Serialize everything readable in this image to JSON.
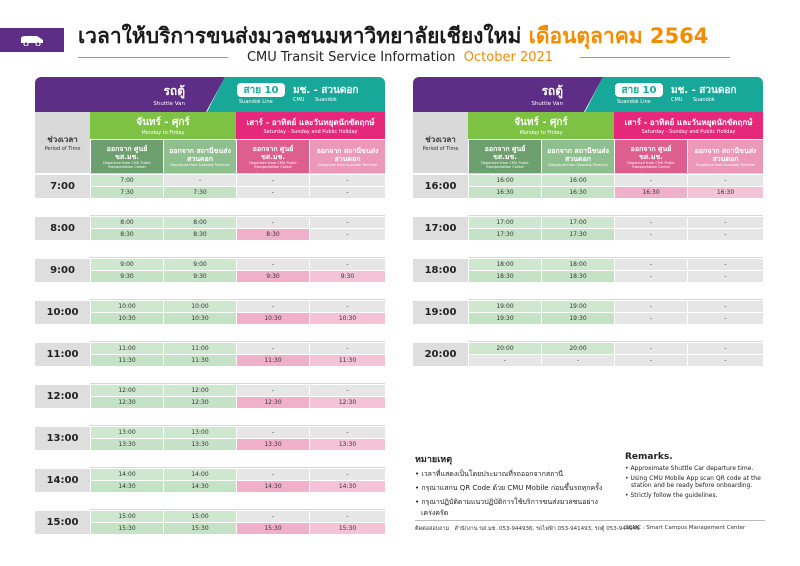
{
  "header": {
    "title": "เวลาให้บริการขนส่งมวลชนมหาวิทยาลัยเชียงใหม่",
    "title_month": "เดือนตุลาคม 2564",
    "subtitle": "CMU Transit Service Information",
    "subtitle_month": "October 2021"
  },
  "table_header": {
    "vehicle": "รถตู้",
    "vehicle_en": "Shuttle Van",
    "line": "สาย 10",
    "line_en": "Suandok Line",
    "route": "มช. - สวนดอก",
    "route_from": "CMU",
    "route_to": "Suandok",
    "period": "ช่วงเวลา",
    "period_en": "Period of Time",
    "weekday": "จันทร์ - ศุกร์",
    "weekday_en": "Monday to Friday",
    "weekend": "เสาร์ - อาทิตย์ และวันหยุดนักขัตฤกษ์",
    "weekend_en": "Saturday - Sunday and Public Holiday",
    "from_center": "ออกจาก ศูนย์ ขส.มช.",
    "from_center_en": "Departure from CMU Public Transportation Center",
    "from_terminal": "ออกจาก สถานีขนส่ง สวนดอก",
    "from_terminal_en": "Departure from Suandok Terminal"
  },
  "tables": [
    {
      "hours": [
        {
          "label": "7:00",
          "rows": [
            [
              "7:00",
              "-",
              "-",
              "-"
            ],
            [
              "7:30",
              "7:30",
              "-",
              "-"
            ]
          ]
        },
        {
          "label": "8:00",
          "rows": [
            [
              "8:00",
              "8:00",
              "-",
              "-"
            ],
            [
              "8:30",
              "8:30",
              "8:30",
              "-"
            ]
          ]
        },
        {
          "label": "9:00",
          "rows": [
            [
              "9:00",
              "9:00",
              "-",
              "-"
            ],
            [
              "9:30",
              "9:30",
              "9:30",
              "9:30"
            ]
          ]
        },
        {
          "label": "10:00",
          "rows": [
            [
              "10:00",
              "10:00",
              "-",
              "-"
            ],
            [
              "10:30",
              "10:30",
              "10:30",
              "10:30"
            ]
          ]
        },
        {
          "label": "11:00",
          "rows": [
            [
              "11:00",
              "11:00",
              "-",
              "-"
            ],
            [
              "11:30",
              "11:30",
              "11:30",
              "11:30"
            ]
          ]
        },
        {
          "label": "12:00",
          "rows": [
            [
              "12:00",
              "12:00",
              "-",
              "-"
            ],
            [
              "12:30",
              "12:30",
              "12:30",
              "12:30"
            ]
          ]
        },
        {
          "label": "13:00",
          "rows": [
            [
              "13:00",
              "13:00",
              "-",
              "-"
            ],
            [
              "13:30",
              "13:30",
              "13:30",
              "13:30"
            ]
          ]
        },
        {
          "label": "14:00",
          "rows": [
            [
              "14:00",
              "14:00",
              "-",
              "-"
            ],
            [
              "14:30",
              "14:30",
              "14:30",
              "14:30"
            ]
          ]
        },
        {
          "label": "15:00",
          "rows": [
            [
              "15:00",
              "15:00",
              "-",
              "-"
            ],
            [
              "15:30",
              "15:30",
              "15:30",
              "15:30"
            ]
          ]
        }
      ]
    },
    {
      "hours": [
        {
          "label": "16:00",
          "rows": [
            [
              "16:00",
              "16:00",
              "-",
              "-"
            ],
            [
              "16:30",
              "16:30",
              "16:30",
              "16:30"
            ]
          ]
        },
        {
          "label": "17:00",
          "rows": [
            [
              "17:00",
              "17:00",
              "-",
              "-"
            ],
            [
              "17:30",
              "17:30",
              "-",
              "-"
            ]
          ]
        },
        {
          "label": "18:00",
          "rows": [
            [
              "18:00",
              "18:00",
              "-",
              "-"
            ],
            [
              "18:30",
              "18:30",
              "-",
              "-"
            ]
          ]
        },
        {
          "label": "19:00",
          "rows": [
            [
              "19:00",
              "19:00",
              "-",
              "-"
            ],
            [
              "19:30",
              "19:30",
              "-",
              "-"
            ]
          ]
        },
        {
          "label": "20:00",
          "rows": [
            [
              "20:00",
              "20:00",
              "-",
              "-"
            ],
            [
              "-",
              "-",
              "-",
              "-"
            ]
          ]
        }
      ]
    }
  ],
  "remarks": {
    "th_title": "หมายเหตุ",
    "th_items": [
      "เวลาที่แสดงเป็นโดยประมาณที่รถออกจากสถานี",
      "กรุณาแสกน QR Code ด้วย CMU Mobile ก่อนขึ้นรถทุกครั้ง",
      "กรุณาปฏิบัติตามแนวปฏิบัติการใช้บริการขนส่งมวลชนอย่างเคร่งครัด"
    ],
    "en_title": "Remarks.",
    "en_items": [
      "Approximate Shuttle Car departure time.",
      "Using CMU Mobile App scan QR code at the station and be ready before onboarding.",
      "Strictly follow the guidelines."
    ]
  },
  "footer": {
    "contact": "ติดต่อสอบถาม   สำนักงาน ขส.มช. 053-944936, รถไฟฟ้า 053-941493, รถตู้ 053-944949",
    "org": "SCMC : Smart Campus Management Center"
  }
}
